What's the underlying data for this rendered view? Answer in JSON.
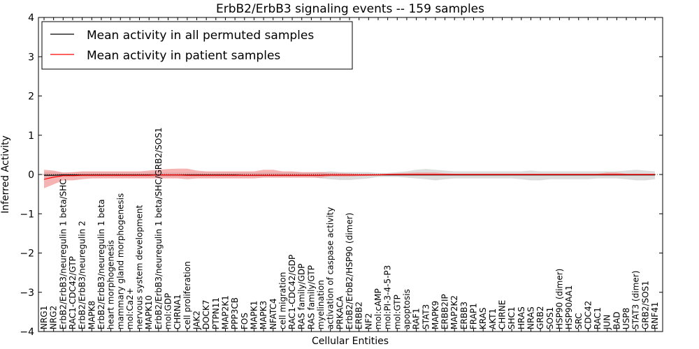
{
  "chart_data": {
    "type": "line",
    "title": "ErbB2/ErbB3 signaling events -- 159 samples",
    "xlabel": "Cellular Entities",
    "ylabel": "Inferred Activity",
    "ylim": [
      -4,
      4
    ],
    "yticks": [
      -4,
      -3,
      -2,
      -1,
      0,
      1,
      2,
      3,
      4
    ],
    "ytick_labels": [
      "−4",
      "−3",
      "−2",
      "−1",
      "0",
      "1",
      "2",
      "3",
      "4"
    ],
    "legend": {
      "position": "top-left",
      "entries": [
        {
          "label": "Mean activity in all permuted samples",
          "color": "#000000"
        },
        {
          "label": "Mean activity in patient samples",
          "color": "#ff0000"
        }
      ]
    },
    "categories": [
      "NRG1",
      "NRG2",
      "ErbB2/ErbB3/neuregulin 1 beta/SHC",
      "RAC1-CDC42/GTP",
      "ErbB2/ErbB3/neuregulin 2",
      "MAPK8",
      "ErbB2/ErbB3/neuregulin 1 beta",
      "heart morphogenesis",
      "mammary gland morphogenesis",
      "mol:Ca2+",
      "nervous system development",
      "MAPK10",
      "ErbB2/ErbB3/neuregulin 1 beta/SHC/GRB2/SOS1",
      "mol:GDP",
      "CHRNA1",
      "cell proliferation",
      "JAK2",
      "DOCK7",
      "PTPN11",
      "MAP2K1",
      "PPP3CB",
      "FOS",
      "MAPK1",
      "MAPK3",
      "NFATC4",
      "cell migration",
      "RAC1-CDC42/GDP",
      "RAS family/GDP",
      "RAS family/GTP",
      "myelination",
      "activation of caspase activity",
      "PRKACA",
      "ErbB2/ErbB2/HSP90 (dimer)",
      "ERBB2",
      "NF2",
      "mol:cAMP",
      "mol:PI-3-4-5-P3",
      "mol:GTP",
      "apoptosis",
      "RAF1",
      "STAT3",
      "MAPK9",
      "ERBB2IP",
      "MAP2K2",
      "ERBB3",
      "FRAP1",
      "KRAS",
      "AKT1",
      "CHRNE",
      "SHC1",
      "HRAS",
      "NRAS",
      "GRB2",
      "SOS1",
      "HSP90 (dimer)",
      "HSP90AA1",
      "SRC",
      "CDC42",
      "RAC1",
      "JUN",
      "BAD",
      "USP8",
      "STAT3 (dimer)",
      "GRB2/SOS1",
      "RNF41"
    ],
    "series": [
      {
        "name": "Mean activity in patient samples",
        "color": "#ff0000",
        "values": [
          -0.12,
          -0.07,
          -0.03,
          -0.03,
          -0.02,
          -0.02,
          -0.02,
          -0.02,
          -0.02,
          -0.02,
          -0.02,
          -0.02,
          -0.01,
          -0.01,
          -0.01,
          -0.02,
          -0.02,
          -0.02,
          -0.02,
          -0.02,
          -0.02,
          -0.02,
          -0.02,
          -0.02,
          -0.02,
          -0.02,
          -0.02,
          -0.02,
          -0.02,
          -0.02,
          -0.01,
          -0.01,
          -0.01,
          -0.01,
          -0.01,
          -0.01,
          0.0,
          0.0,
          0.0,
          0.0,
          0.0,
          0.0,
          0.0,
          0.0,
          0.0,
          0.0,
          0.0,
          0.0,
          0.0,
          0.0,
          0.0,
          0.0,
          0.0,
          0.0,
          0.0,
          0.0,
          0.0,
          0.0,
          0.0,
          0.0,
          0.0,
          0.0,
          0.0,
          0.0,
          0.0
        ],
        "band_lower": [
          -0.35,
          -0.25,
          -0.15,
          -0.15,
          -0.12,
          -0.1,
          -0.1,
          -0.1,
          -0.1,
          -0.1,
          -0.1,
          -0.1,
          -0.1,
          -0.1,
          -0.1,
          -0.12,
          -0.1,
          -0.1,
          -0.1,
          -0.1,
          -0.1,
          -0.1,
          -0.1,
          -0.08,
          -0.08,
          -0.08,
          -0.08,
          -0.08,
          -0.08,
          -0.08,
          -0.05,
          -0.05,
          -0.05,
          -0.04,
          -0.03,
          -0.02,
          -0.02,
          -0.02,
          -0.02,
          -0.02,
          -0.02,
          -0.02,
          -0.02,
          -0.02,
          -0.02,
          -0.02,
          -0.02,
          -0.02,
          -0.02,
          -0.02,
          -0.02,
          -0.02,
          -0.02,
          -0.02,
          -0.02,
          -0.02,
          -0.02,
          -0.02,
          -0.02,
          -0.02,
          -0.02,
          -0.02,
          -0.02,
          -0.02,
          -0.02
        ],
        "band_upper": [
          0.12,
          0.1,
          0.05,
          0.06,
          0.08,
          0.08,
          0.08,
          0.08,
          0.08,
          0.08,
          0.08,
          0.1,
          0.12,
          0.14,
          0.15,
          0.15,
          0.1,
          0.08,
          0.08,
          0.08,
          0.08,
          0.08,
          0.08,
          0.12,
          0.12,
          0.08,
          0.08,
          0.06,
          0.06,
          0.06,
          0.04,
          0.04,
          0.03,
          0.02,
          0.02,
          0.02,
          0.02,
          0.03,
          0.04,
          0.05,
          0.05,
          0.05,
          0.03,
          0.02,
          0.02,
          0.02,
          0.02,
          0.02,
          0.02,
          0.02,
          0.02,
          0.02,
          0.02,
          0.02,
          0.02,
          0.02,
          0.02,
          0.02,
          0.02,
          0.05,
          0.05,
          0.02,
          0.02,
          0.02,
          0.02
        ]
      },
      {
        "name": "Mean activity in all permuted samples",
        "color": "#000000",
        "values": [
          -0.02,
          -0.02,
          -0.01,
          -0.01,
          -0.01,
          -0.01,
          -0.01,
          -0.01,
          -0.01,
          -0.01,
          -0.01,
          -0.01,
          -0.01,
          -0.01,
          -0.01,
          -0.01,
          -0.01,
          -0.01,
          -0.01,
          -0.01,
          -0.01,
          -0.02,
          -0.02,
          -0.02,
          -0.02,
          -0.02,
          -0.02,
          -0.02,
          -0.02,
          -0.02,
          -0.01,
          -0.01,
          -0.01,
          -0.01,
          -0.01,
          -0.01,
          -0.01,
          -0.01,
          -0.01,
          -0.01,
          -0.01,
          -0.01,
          -0.01,
          -0.01,
          -0.01,
          -0.01,
          -0.01,
          -0.01,
          -0.01,
          -0.01,
          -0.01,
          -0.01,
          -0.01,
          -0.01,
          -0.01,
          -0.01,
          -0.01,
          -0.01,
          -0.01,
          -0.01,
          -0.01,
          -0.01,
          -0.01,
          -0.01,
          -0.01
        ],
        "band_lower": [
          -0.08,
          -0.08,
          -0.06,
          -0.06,
          -0.06,
          -0.06,
          -0.06,
          -0.06,
          -0.06,
          -0.06,
          -0.06,
          -0.06,
          -0.06,
          -0.06,
          -0.06,
          -0.06,
          -0.06,
          -0.06,
          -0.06,
          -0.06,
          -0.06,
          -0.06,
          -0.06,
          -0.06,
          -0.06,
          -0.06,
          -0.06,
          -0.06,
          -0.06,
          -0.1,
          -0.12,
          -0.14,
          -0.14,
          -0.12,
          -0.1,
          -0.06,
          -0.06,
          -0.06,
          -0.08,
          -0.1,
          -0.12,
          -0.15,
          -0.12,
          -0.1,
          -0.1,
          -0.1,
          -0.1,
          -0.1,
          -0.1,
          -0.1,
          -0.12,
          -0.15,
          -0.15,
          -0.12,
          -0.12,
          -0.12,
          -0.12,
          -0.12,
          -0.1,
          -0.1,
          -0.1,
          -0.12,
          -0.15,
          -0.15,
          -0.12
        ],
        "band_upper": [
          0.06,
          0.06,
          0.05,
          0.05,
          0.05,
          0.05,
          0.05,
          0.05,
          0.05,
          0.05,
          0.05,
          0.05,
          0.05,
          0.05,
          0.05,
          0.05,
          0.05,
          0.05,
          0.05,
          0.05,
          0.05,
          0.05,
          0.05,
          0.05,
          0.05,
          0.05,
          0.05,
          0.05,
          0.05,
          0.06,
          0.08,
          0.06,
          0.06,
          0.06,
          0.06,
          0.04,
          0.04,
          0.06,
          0.08,
          0.12,
          0.14,
          0.12,
          0.1,
          0.08,
          0.08,
          0.08,
          0.08,
          0.08,
          0.08,
          0.08,
          0.08,
          0.1,
          0.08,
          0.08,
          0.08,
          0.08,
          0.08,
          0.08,
          0.08,
          0.08,
          0.08,
          0.1,
          0.12,
          0.1,
          0.08
        ]
      }
    ]
  }
}
